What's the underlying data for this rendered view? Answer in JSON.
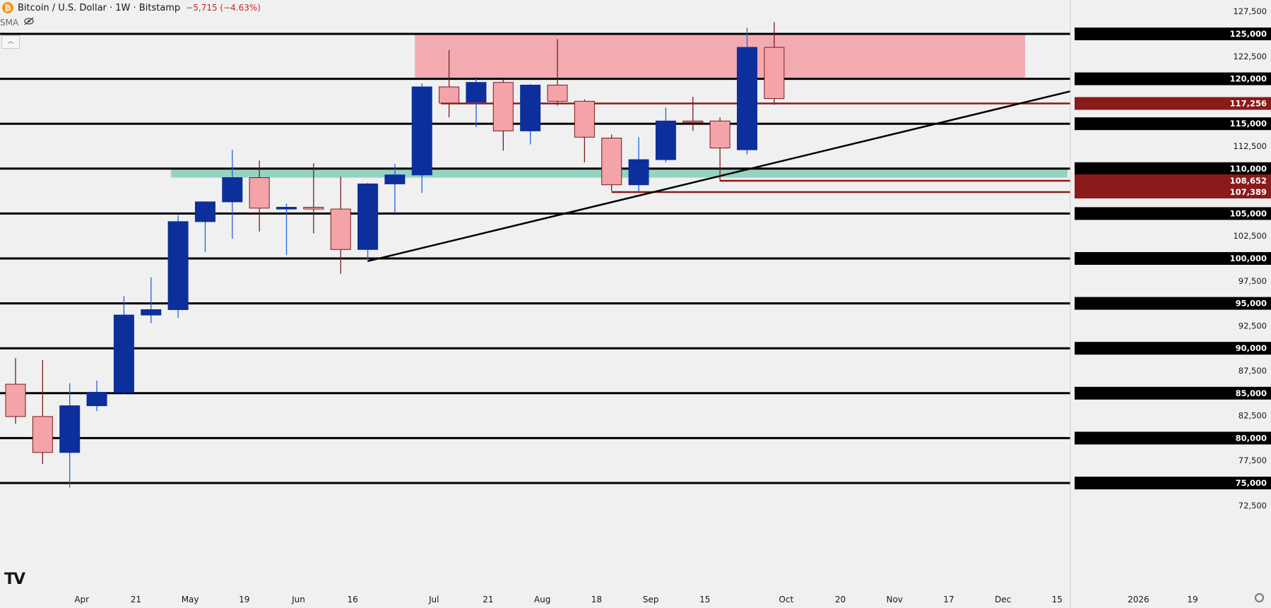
{
  "header": {
    "symbol_icon": "bitcoin-icon",
    "title": "Bitcoin / U.S. Dollar · 1W · Bitstamp",
    "change": "−5,715 (−4.63%)"
  },
  "indicator": {
    "label": "SMA",
    "icon": "eye-hidden-icon"
  },
  "colors": {
    "up_body": "#0c2f9c",
    "up_wick": "#2060e0",
    "down_body": "#f4a4a8",
    "down_border": "#7a1a1a",
    "resistance_zone": "#f2a7ad",
    "support_zone": "#8fd1c0",
    "level_line": "#000000",
    "marker_line": "#8b1a1a",
    "marker_badge": "#8b1a1a"
  },
  "chart_data": {
    "type": "candlestick",
    "timeframe": "1W",
    "ylim": [
      71500,
      128500
    ],
    "y_ticks": [
      72500,
      75000,
      77500,
      80000,
      82500,
      85000,
      87500,
      90000,
      92500,
      95000,
      97500,
      100000,
      102500,
      105000,
      107500,
      110000,
      112500,
      115000,
      117500,
      120000,
      122500,
      125000,
      127500
    ],
    "y_tick_labels": [
      "72,500",
      "75,000",
      "77,500",
      "80,000",
      "82,500",
      "85,000",
      "87,500",
      "90,000",
      "92,500",
      "95,000",
      "97,500",
      "100,000",
      "102,500",
      "105,000",
      "107,500",
      "110,000",
      "112,500",
      "115,000",
      "117,500",
      "120,000",
      "122,500",
      "125,000",
      "127,500"
    ],
    "x_tick_labels": [
      {
        "week": 2,
        "label": "Apr"
      },
      {
        "week": 4,
        "label": "21"
      },
      {
        "week": 6,
        "label": "May"
      },
      {
        "week": 8,
        "label": "19"
      },
      {
        "week": 10,
        "label": "Jun"
      },
      {
        "week": 12,
        "label": "16"
      },
      {
        "week": 15,
        "label": "Jul"
      },
      {
        "week": 17,
        "label": "21"
      },
      {
        "week": 19,
        "label": "Aug"
      },
      {
        "week": 21,
        "label": "18"
      },
      {
        "week": 23,
        "label": "Sep"
      },
      {
        "week": 25,
        "label": "15"
      },
      {
        "week": 28,
        "label": "Oct"
      },
      {
        "week": 30,
        "label": "20"
      },
      {
        "week": 32,
        "label": "Nov"
      },
      {
        "week": 34,
        "label": "17"
      },
      {
        "week": 36,
        "label": "Dec"
      },
      {
        "week": 38,
        "label": "15"
      },
      {
        "week": 41,
        "label": "2026"
      },
      {
        "week": 43,
        "label": "19"
      }
    ],
    "candles": [
      {
        "week": 0,
        "open": 86000,
        "high": 88900,
        "low": 81600,
        "close": 82400
      },
      {
        "week": 1,
        "open": 82400,
        "high": 88700,
        "low": 77100,
        "close": 78400
      },
      {
        "week": 2,
        "open": 78400,
        "high": 86100,
        "low": 74500,
        "close": 83600
      },
      {
        "week": 3,
        "open": 83600,
        "high": 86400,
        "low": 83000,
        "close": 85100
      },
      {
        "week": 4,
        "open": 85100,
        "high": 95800,
        "low": 85000,
        "close": 93700
      },
      {
        "week": 5,
        "open": 93700,
        "high": 97900,
        "low": 92800,
        "close": 94300
      },
      {
        "week": 6,
        "open": 94300,
        "high": 104800,
        "low": 93400,
        "close": 104100
      },
      {
        "week": 7,
        "open": 104100,
        "high": 105900,
        "low": 100700,
        "close": 106300
      },
      {
        "week": 8,
        "open": 106300,
        "high": 112100,
        "low": 102200,
        "close": 109000
      },
      {
        "week": 9,
        "open": 109000,
        "high": 110900,
        "low": 103000,
        "close": 105600
      },
      {
        "week": 10,
        "open": 105500,
        "high": 106100,
        "low": 100400,
        "close": 105700
      },
      {
        "week": 11,
        "open": 105700,
        "high": 110600,
        "low": 102800,
        "close": 105500
      },
      {
        "week": 12,
        "open": 105500,
        "high": 109100,
        "low": 98300,
        "close": 101000
      },
      {
        "week": 13,
        "open": 101000,
        "high": 108400,
        "low": 99600,
        "close": 108300
      },
      {
        "week": 14,
        "open": 108300,
        "high": 110500,
        "low": 105100,
        "close": 109300
      },
      {
        "week": 15,
        "open": 109300,
        "high": 119500,
        "low": 107300,
        "close": 119100
      },
      {
        "week": 16,
        "open": 119100,
        "high": 123200,
        "low": 115700,
        "close": 117300
      },
      {
        "week": 17,
        "open": 117400,
        "high": 120200,
        "low": 114600,
        "close": 119600
      },
      {
        "week": 18,
        "open": 119600,
        "high": 119900,
        "low": 112000,
        "close": 114200
      },
      {
        "week": 19,
        "open": 114200,
        "high": 119400,
        "low": 112700,
        "close": 119300
      },
      {
        "week": 20,
        "open": 119300,
        "high": 124400,
        "low": 117000,
        "close": 117500
      },
      {
        "week": 21,
        "open": 117500,
        "high": 117700,
        "low": 110700,
        "close": 113500
      },
      {
        "week": 22,
        "open": 113400,
        "high": 113800,
        "low": 107500,
        "close": 108200
      },
      {
        "week": 23,
        "open": 108200,
        "high": 113500,
        "low": 107400,
        "close": 111000
      },
      {
        "week": 24,
        "open": 111000,
        "high": 116800,
        "low": 110700,
        "close": 115300
      },
      {
        "week": 25,
        "open": 115300,
        "high": 118000,
        "low": 114200,
        "close": 115200
      },
      {
        "week": 26,
        "open": 115300,
        "high": 115700,
        "low": 108600,
        "close": 112300
      },
      {
        "week": 27,
        "open": 112100,
        "high": 125700,
        "low": 111600,
        "close": 123500
      },
      {
        "week": 28,
        "open": 123500,
        "high": 126300,
        "low": 117100,
        "close": 117800
      }
    ],
    "horizontal_levels": [
      75000,
      80000,
      85000,
      90000,
      95000,
      100000,
      105000,
      110000,
      115000,
      120000,
      125000
    ],
    "zones": [
      {
        "name": "resistance",
        "y1": 120000,
        "y2": 125000,
        "week_start": 15,
        "week_end": 37
      },
      {
        "name": "support",
        "y1": 109000,
        "y2": 110000,
        "week_start": 6,
        "week_end": 44
      }
    ],
    "trendline": {
      "start": {
        "week": 13,
        "value": 99700
      },
      "end": {
        "week": 45.5,
        "value": 123400
      }
    },
    "price_markers": [
      {
        "value": 117256,
        "label": "117,256",
        "week_start": 15.7
      },
      {
        "value": 108652,
        "label": "108,652",
        "week_start": 26
      },
      {
        "value": 107389,
        "label": "107,389",
        "week_start": 22
      }
    ]
  }
}
